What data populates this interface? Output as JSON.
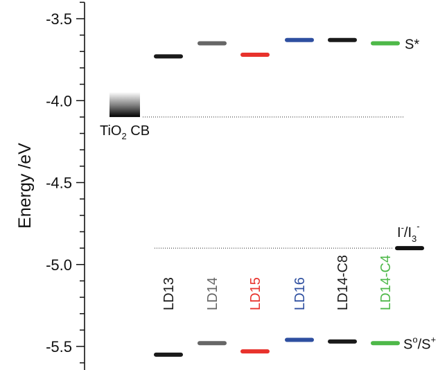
{
  "chart_data": {
    "type": "energy-level diagram",
    "ylabel": "Energy /eV",
    "ylim": [
      -5.65,
      -3.4
    ],
    "yticks": [
      -3.5,
      -4.0,
      -4.5,
      -5.0,
      -5.5
    ],
    "ytick_labels": [
      "-3.5",
      "-4.0",
      "-4.5",
      "-5.0",
      "-5.5"
    ],
    "dyes": [
      {
        "name": "LD13",
        "color": "#1a1a1a",
        "excited": -3.73,
        "ground": -5.55
      },
      {
        "name": "LD14",
        "color": "#666666",
        "excited": -3.65,
        "ground": -5.48
      },
      {
        "name": "LD15",
        "color": "#e8322c",
        "excited": -3.72,
        "ground": -5.53
      },
      {
        "name": "LD16",
        "color": "#2e4fa0",
        "excited": -3.63,
        "ground": -5.46
      },
      {
        "name": "LD14-C8",
        "color": "#1a1a1a",
        "excited": -3.63,
        "ground": -5.47
      },
      {
        "name": "LD14-C4",
        "color": "#4db848",
        "excited": -3.65,
        "ground": -5.48
      }
    ],
    "excited_label": "S*",
    "ground_label": {
      "main": "S",
      "sup1": "o",
      "mid": "/S",
      "sup2": "+"
    },
    "tio2_cb": {
      "value": -4.1,
      "label_main": "TiO",
      "label_sub": "2",
      "label_tail": " CB"
    },
    "redox": {
      "value": -4.9,
      "label": {
        "i1": "I",
        "sup1": "-",
        "mid": "/I",
        "sub": "3",
        "sup2": "-"
      }
    }
  }
}
